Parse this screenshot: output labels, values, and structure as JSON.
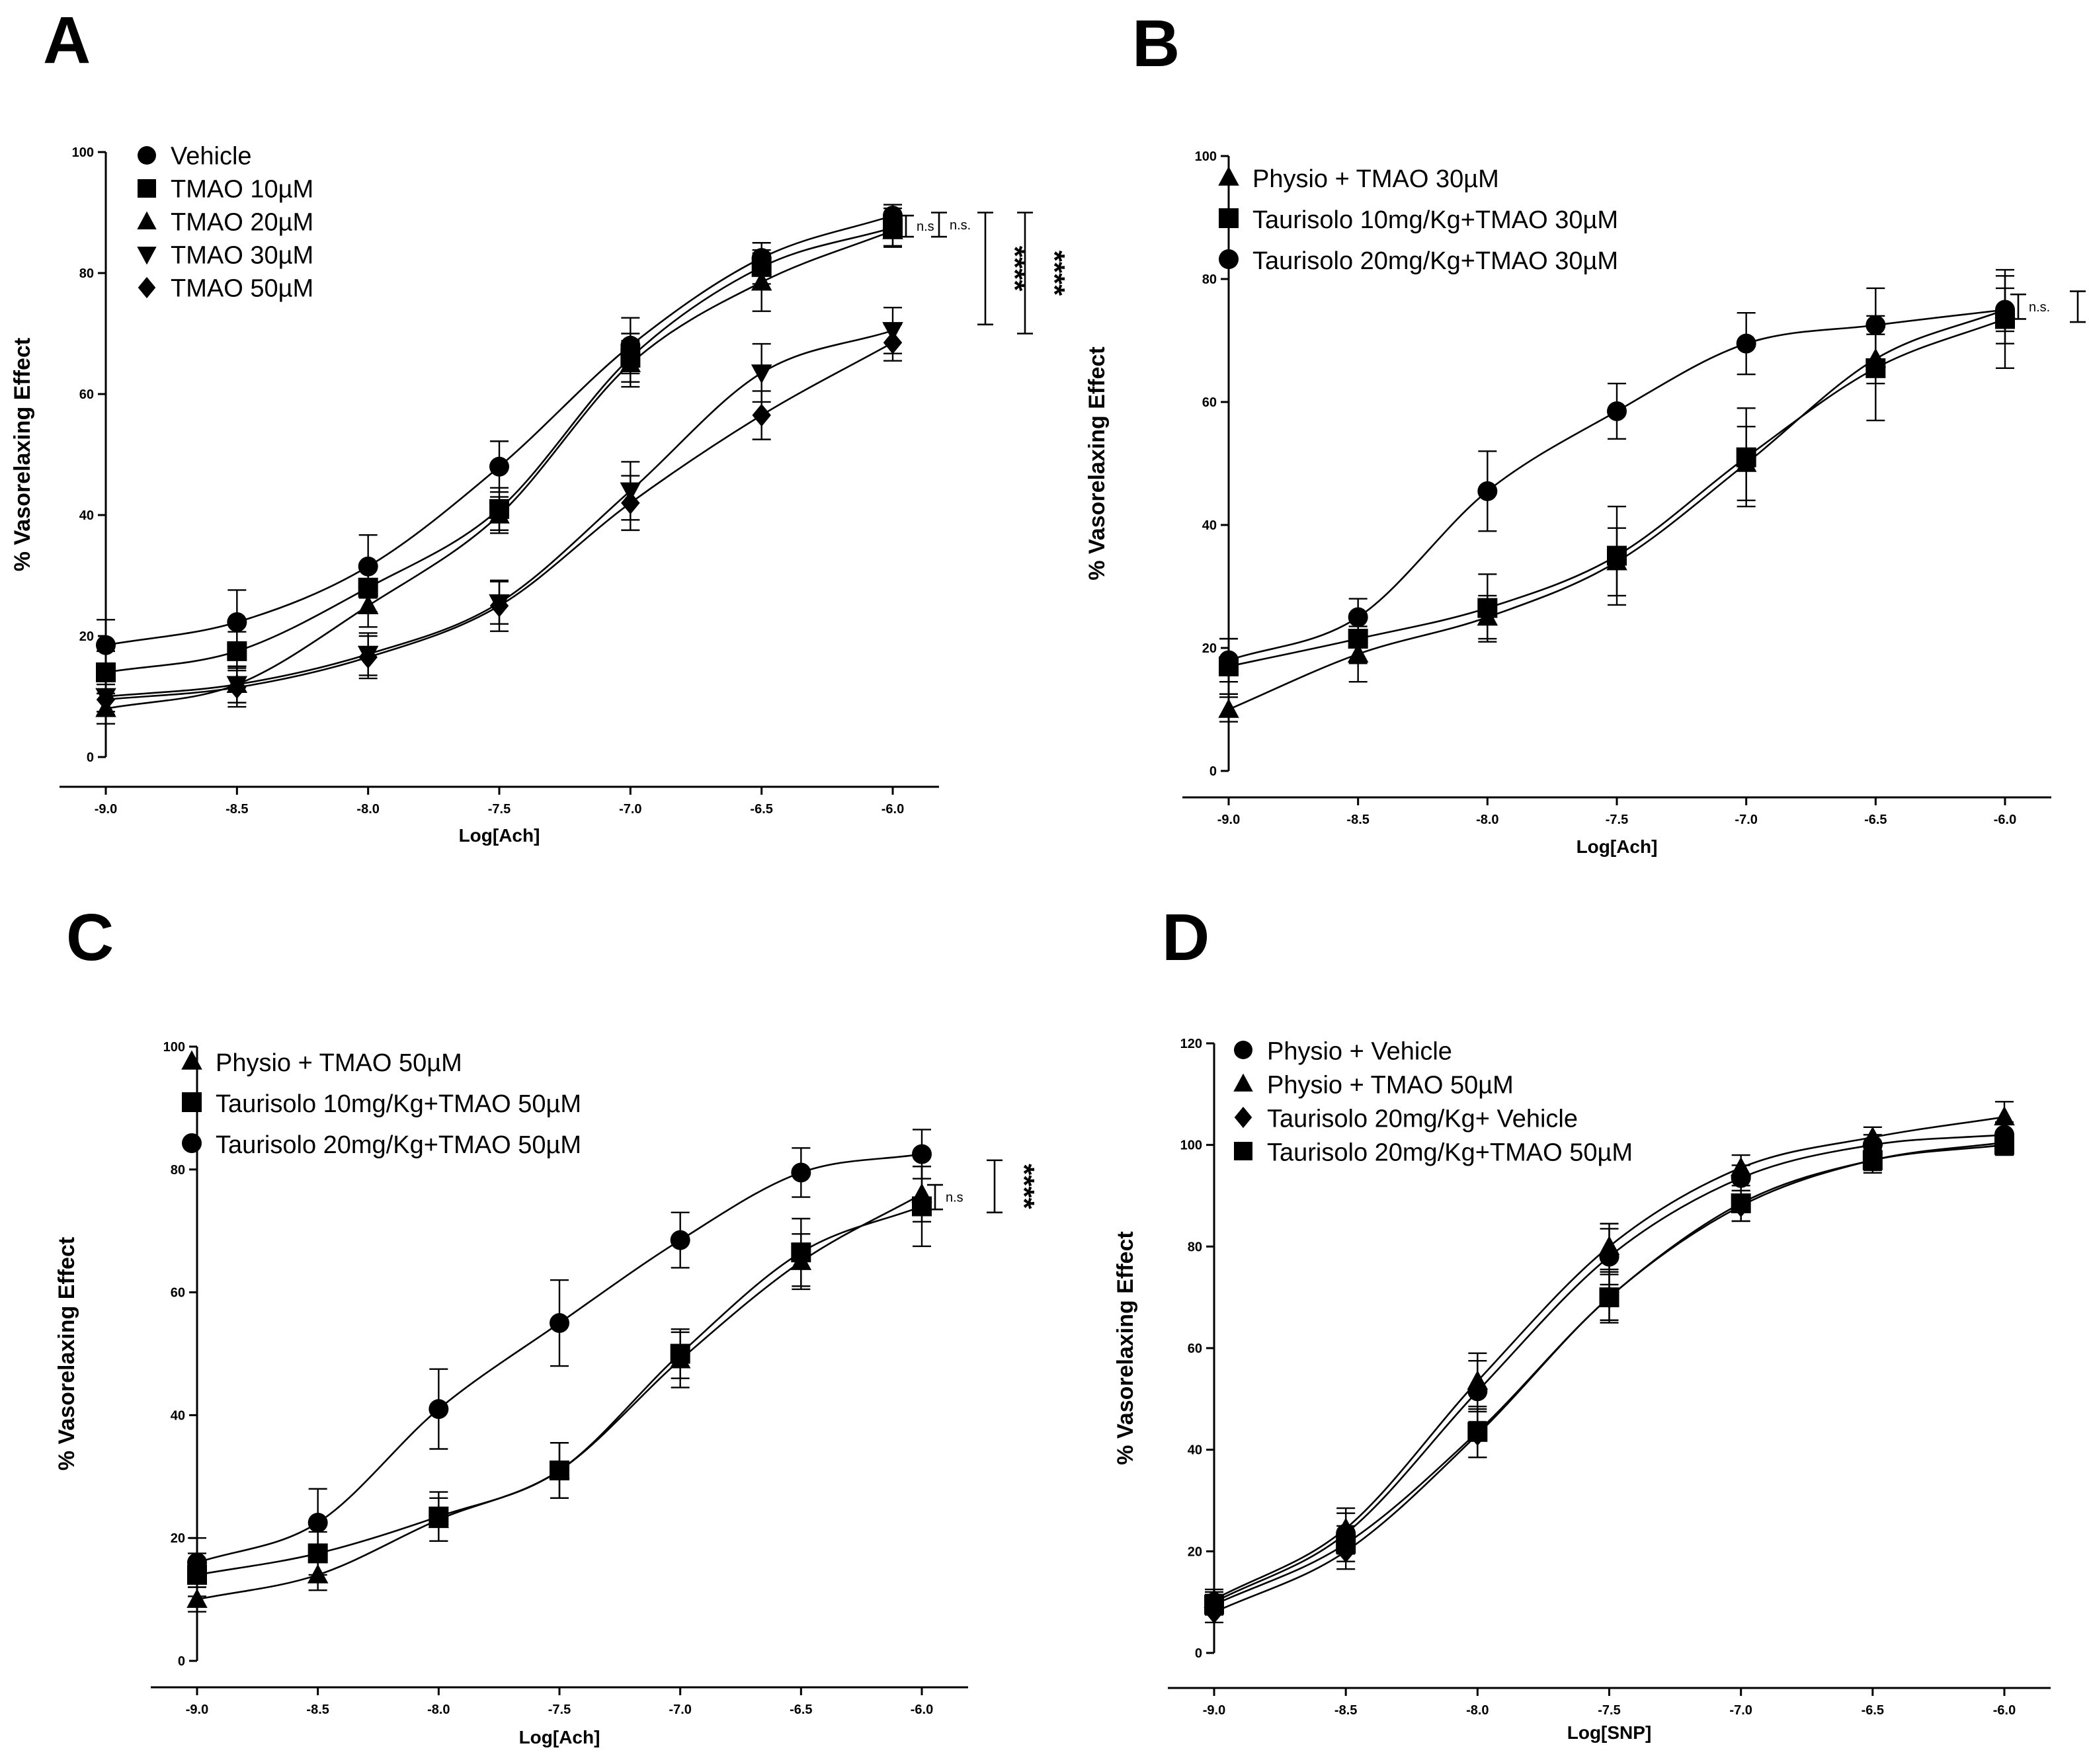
{
  "chart_data": [
    {
      "panel": "A",
      "type": "scatter",
      "xlabel": "Log[Ach]",
      "ylabel": "% Vasorelaxing Effect",
      "xlim": [
        -9.0,
        -6.0
      ],
      "ylim": [
        0,
        100
      ],
      "xticks": [
        -9.0,
        -8.5,
        -8.0,
        -7.5,
        -7.0,
        -6.5,
        -6.0
      ],
      "xtick_labels": [
        "-9.0",
        "-8.5",
        "-8.0",
        "-7.5",
        "-7.0",
        "-6.5",
        "-6.0"
      ],
      "yticks": [
        0,
        20,
        40,
        60,
        80,
        100
      ],
      "legend_position": "top-left",
      "x": [
        -9.0,
        -8.5,
        -8.0,
        -7.5,
        -7.0,
        -6.5,
        -6.0
      ],
      "series": [
        {
          "name": "Vehicle",
          "marker": "circle",
          "values": [
            18.5,
            22.3,
            31.5,
            48.0,
            68.0,
            82.5,
            89.5
          ],
          "errors": [
            4.2,
            5.3,
            5.2,
            4.2,
            4.6,
            2.5,
            1.8
          ]
        },
        {
          "name": "TMAO 10µM",
          "marker": "square",
          "values": [
            14.0,
            17.5,
            28.0,
            41.0,
            66.0,
            81.0,
            87.5
          ],
          "errors": [
            3.5,
            3.2,
            4.0,
            3.5,
            4.0,
            2.8,
            3.2
          ]
        },
        {
          "name": "TMAO 20µM",
          "marker": "triangle-up",
          "values": [
            8.0,
            12.0,
            25.0,
            40.0,
            65.0,
            78.5,
            87.0
          ],
          "errors": [
            2.5,
            3.0,
            3.5,
            3.0,
            3.8,
            4.8,
            2.5
          ]
        },
        {
          "name": "TMAO 30µM",
          "marker": "triangle-down",
          "values": [
            10.0,
            12.0,
            17.0,
            25.5,
            44.0,
            63.5,
            70.5
          ],
          "errors": [
            2.5,
            3.0,
            3.5,
            3.5,
            4.8,
            4.8,
            3.8
          ]
        },
        {
          "name": "TMAO 50µM",
          "marker": "diamond",
          "values": [
            9.5,
            11.5,
            16.5,
            25.0,
            42.0,
            56.5,
            68.5
          ],
          "errors": [
            2.5,
            3.2,
            3.5,
            4.2,
            4.5,
            4.0,
            3.0
          ]
        }
      ],
      "annotations": [
        {
          "text": "n.s",
          "y_range": [
            86,
            89.5
          ],
          "x_offset": 20
        },
        {
          "text": "n.s.",
          "y_range": [
            86,
            90
          ],
          "x_offset": 70
        },
        {
          "text": "****",
          "y_range": [
            71.5,
            90
          ],
          "x_offset": 140
        },
        {
          "text": "****",
          "y_range": [
            70,
            90
          ],
          "x_offset": 200
        }
      ]
    },
    {
      "panel": "B",
      "type": "scatter",
      "xlabel": "Log[Ach]",
      "ylabel": "% Vasorelaxing Effect",
      "xlim": [
        -9.0,
        -6.0
      ],
      "ylim": [
        0,
        100
      ],
      "xticks": [
        -9.0,
        -8.5,
        -8.0,
        -7.5,
        -7.0,
        -6.5,
        -6.0
      ],
      "xtick_labels": [
        "-9.0",
        "-8.5",
        "-8.0",
        "-7.5",
        "-7.0",
        "-6.5",
        "-6.0"
      ],
      "yticks": [
        0,
        20,
        40,
        60,
        80,
        100
      ],
      "legend_position": "top-left",
      "x": [
        -9.0,
        -8.5,
        -8.0,
        -7.5,
        -7.0,
        -6.5,
        -6.0
      ],
      "series": [
        {
          "name": "Physio + TMAO 30µM",
          "marker": "triangle-up",
          "values": [
            10.0,
            19.0,
            25.0,
            34.0,
            50.0,
            67.0,
            75.0
          ],
          "errors": [
            2.0,
            4.5,
            3.5,
            5.5,
            6.0,
            4.0,
            3.5
          ]
        },
        {
          "name": "Taurisolo 10mg/Kg+TMAO 30µM",
          "marker": "square",
          "values": [
            17.0,
            21.5,
            26.5,
            35.0,
            51.0,
            65.5,
            73.5
          ],
          "errors": [
            4.5,
            4.0,
            5.5,
            8.0,
            8.0,
            8.5,
            8.0
          ]
        },
        {
          "name": "Taurisolo 20mg/Kg+TMAO 30µM",
          "marker": "circle",
          "values": [
            18.0,
            25.0,
            45.5,
            58.5,
            69.5,
            72.5,
            75.0
          ],
          "errors": [
            3.5,
            3.0,
            6.5,
            4.5,
            5.0,
            6.0,
            5.5
          ]
        }
      ],
      "annotations": [
        {
          "text": "n.s.",
          "y_range": [
            73.5,
            77.5
          ],
          "x_offset": 20
        },
        {
          "text": "***",
          "y_range": [
            73,
            78
          ],
          "x_offset": 110
        }
      ]
    },
    {
      "panel": "C",
      "type": "scatter",
      "xlabel": "Log[Ach]",
      "ylabel": "% Vasorelaxing Effect",
      "xlim": [
        -9.0,
        -6.0
      ],
      "ylim": [
        0,
        100
      ],
      "xticks": [
        -9.0,
        -8.5,
        -8.0,
        -7.5,
        -7.0,
        -6.5,
        -6.0
      ],
      "xtick_labels": [
        "-9.0",
        "-8.5",
        "-8.0",
        "-7.5",
        "-7.0",
        "-6.5",
        "-6.0"
      ],
      "yticks": [
        0,
        20,
        40,
        60,
        80,
        100
      ],
      "legend_position": "top-left",
      "x": [
        -9.0,
        -8.5,
        -8.0,
        -7.5,
        -7.0,
        -6.5,
        -6.0
      ],
      "series": [
        {
          "name": "Physio + TMAO 50µM",
          "marker": "triangle-up",
          "values": [
            10.0,
            14.0,
            23.0,
            31.0,
            49.0,
            65.0,
            76.0
          ],
          "errors": [
            2.0,
            2.5,
            3.5,
            4.5,
            4.5,
            4.5,
            4.5
          ]
        },
        {
          "name": "Taurisolo 10mg/Kg+TMAO 50µM",
          "marker": "square",
          "values": [
            14.0,
            17.5,
            23.5,
            31.0,
            50.0,
            66.5,
            74.0
          ],
          "errors": [
            3.5,
            3.5,
            4.0,
            4.5,
            4.0,
            5.5,
            6.5
          ]
        },
        {
          "name": "Taurisolo 20mg/Kg+TMAO 50µM",
          "marker": "circle",
          "values": [
            16.0,
            22.5,
            41.0,
            55.0,
            68.5,
            79.5,
            82.5
          ],
          "errors": [
            4.0,
            5.5,
            6.5,
            7.0,
            4.5,
            4.0,
            4.0
          ]
        }
      ],
      "annotations": [
        {
          "text": "n.s",
          "y_range": [
            73.5,
            77.5
          ],
          "x_offset": 20
        },
        {
          "text": "****",
          "y_range": [
            73,
            81.5
          ],
          "x_offset": 110
        }
      ]
    },
    {
      "panel": "D",
      "type": "scatter",
      "xlabel": "Log[SNP]",
      "ylabel": "% Vasorelaxing Effect",
      "xlim": [
        -9.0,
        -6.0
      ],
      "ylim": [
        0,
        120
      ],
      "xticks": [
        -9.0,
        -8.5,
        -8.0,
        -7.5,
        -7.0,
        -6.5,
        -6.0
      ],
      "xtick_labels": [
        "-9.0",
        "-8.5",
        "-8.0",
        "-7.5",
        "-7.0",
        "-6.5",
        "-6.0"
      ],
      "yticks": [
        0,
        20,
        40,
        60,
        80,
        100,
        120
      ],
      "legend_position": "top-left",
      "x": [
        -9.0,
        -8.5,
        -8.0,
        -7.5,
        -7.0,
        -6.5,
        -6.0
      ],
      "series": [
        {
          "name": "Physio + Vehicle",
          "marker": "circle",
          "values": [
            10.0,
            23.5,
            51.5,
            78.0,
            93.5,
            100.0,
            102.0
          ],
          "errors": [
            2.0,
            4.0,
            6.0,
            5.5,
            2.5,
            2.0,
            2.5
          ]
        },
        {
          "name": "Physio + TMAO 50µM",
          "marker": "triangle-up",
          "values": [
            10.5,
            24.5,
            53.5,
            80.0,
            95.5,
            101.5,
            105.5
          ],
          "errors": [
            2.0,
            4.0,
            5.5,
            4.5,
            2.5,
            2.0,
            3.0
          ]
        },
        {
          "name": "Taurisolo 20mg/Kg+ Vehicle",
          "marker": "diamond",
          "values": [
            8.0,
            20.0,
            43.0,
            70.0,
            88.0,
            97.0,
            100.5
          ],
          "errors": [
            2.0,
            3.5,
            4.5,
            4.5,
            3.0,
            2.0,
            2.0
          ]
        },
        {
          "name": "Taurisolo 20mg/Kg+TMAO 50µM",
          "marker": "square",
          "values": [
            9.5,
            21.5,
            43.5,
            70.0,
            88.5,
            97.0,
            100.0
          ],
          "errors": [
            2.0,
            3.5,
            5.0,
            5.0,
            3.5,
            2.5,
            2.0
          ]
        }
      ]
    }
  ]
}
